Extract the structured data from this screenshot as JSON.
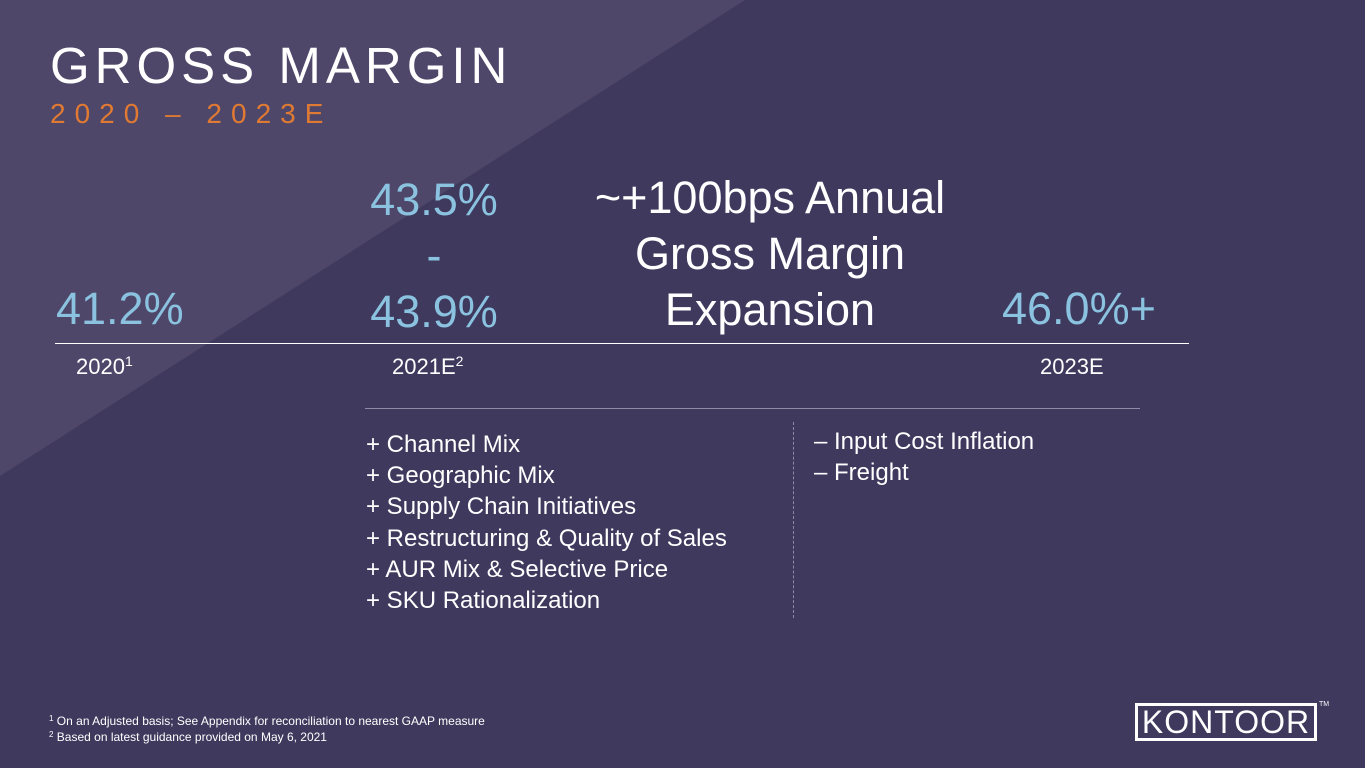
{
  "header": {
    "title": "GROSS MARGIN",
    "subtitle": "2020 – 2023E"
  },
  "milestones": {
    "y2020": {
      "value": "41.2%",
      "label": "2020",
      "note_ref": "1"
    },
    "y2021": {
      "value_high": "43.5%",
      "value_sep": "-",
      "value_low": "43.9%",
      "label": "2021E",
      "note_ref": "2"
    },
    "y2023": {
      "value": "46.0%+",
      "label": "2023E"
    }
  },
  "expansion": {
    "line1": "~+100bps Annual",
    "line2": "Gross Margin",
    "line3": "Expansion"
  },
  "tailwinds": [
    "+ Channel Mix",
    "+ Geographic Mix",
    "+ Supply Chain Initiatives",
    "+ Restructuring & Quality of Sales",
    "+ AUR Mix & Selective Price",
    "+ SKU Rationalization"
  ],
  "headwinds": [
    "– Input Cost Inflation",
    "– Freight"
  ],
  "footnotes": [
    {
      "ref": "1",
      "text": "On an Adjusted basis; See Appendix for reconciliation to nearest GAAP measure"
    },
    {
      "ref": "2",
      "text": "Based on latest guidance provided on May 6, 2021"
    }
  ],
  "logo": {
    "text": "KONTOOR",
    "tm": "TM"
  },
  "colors": {
    "background": "#3e395d",
    "accent_orange": "#e07a33",
    "value_blue": "#8bc2e0",
    "triangle": "#4e4769"
  }
}
